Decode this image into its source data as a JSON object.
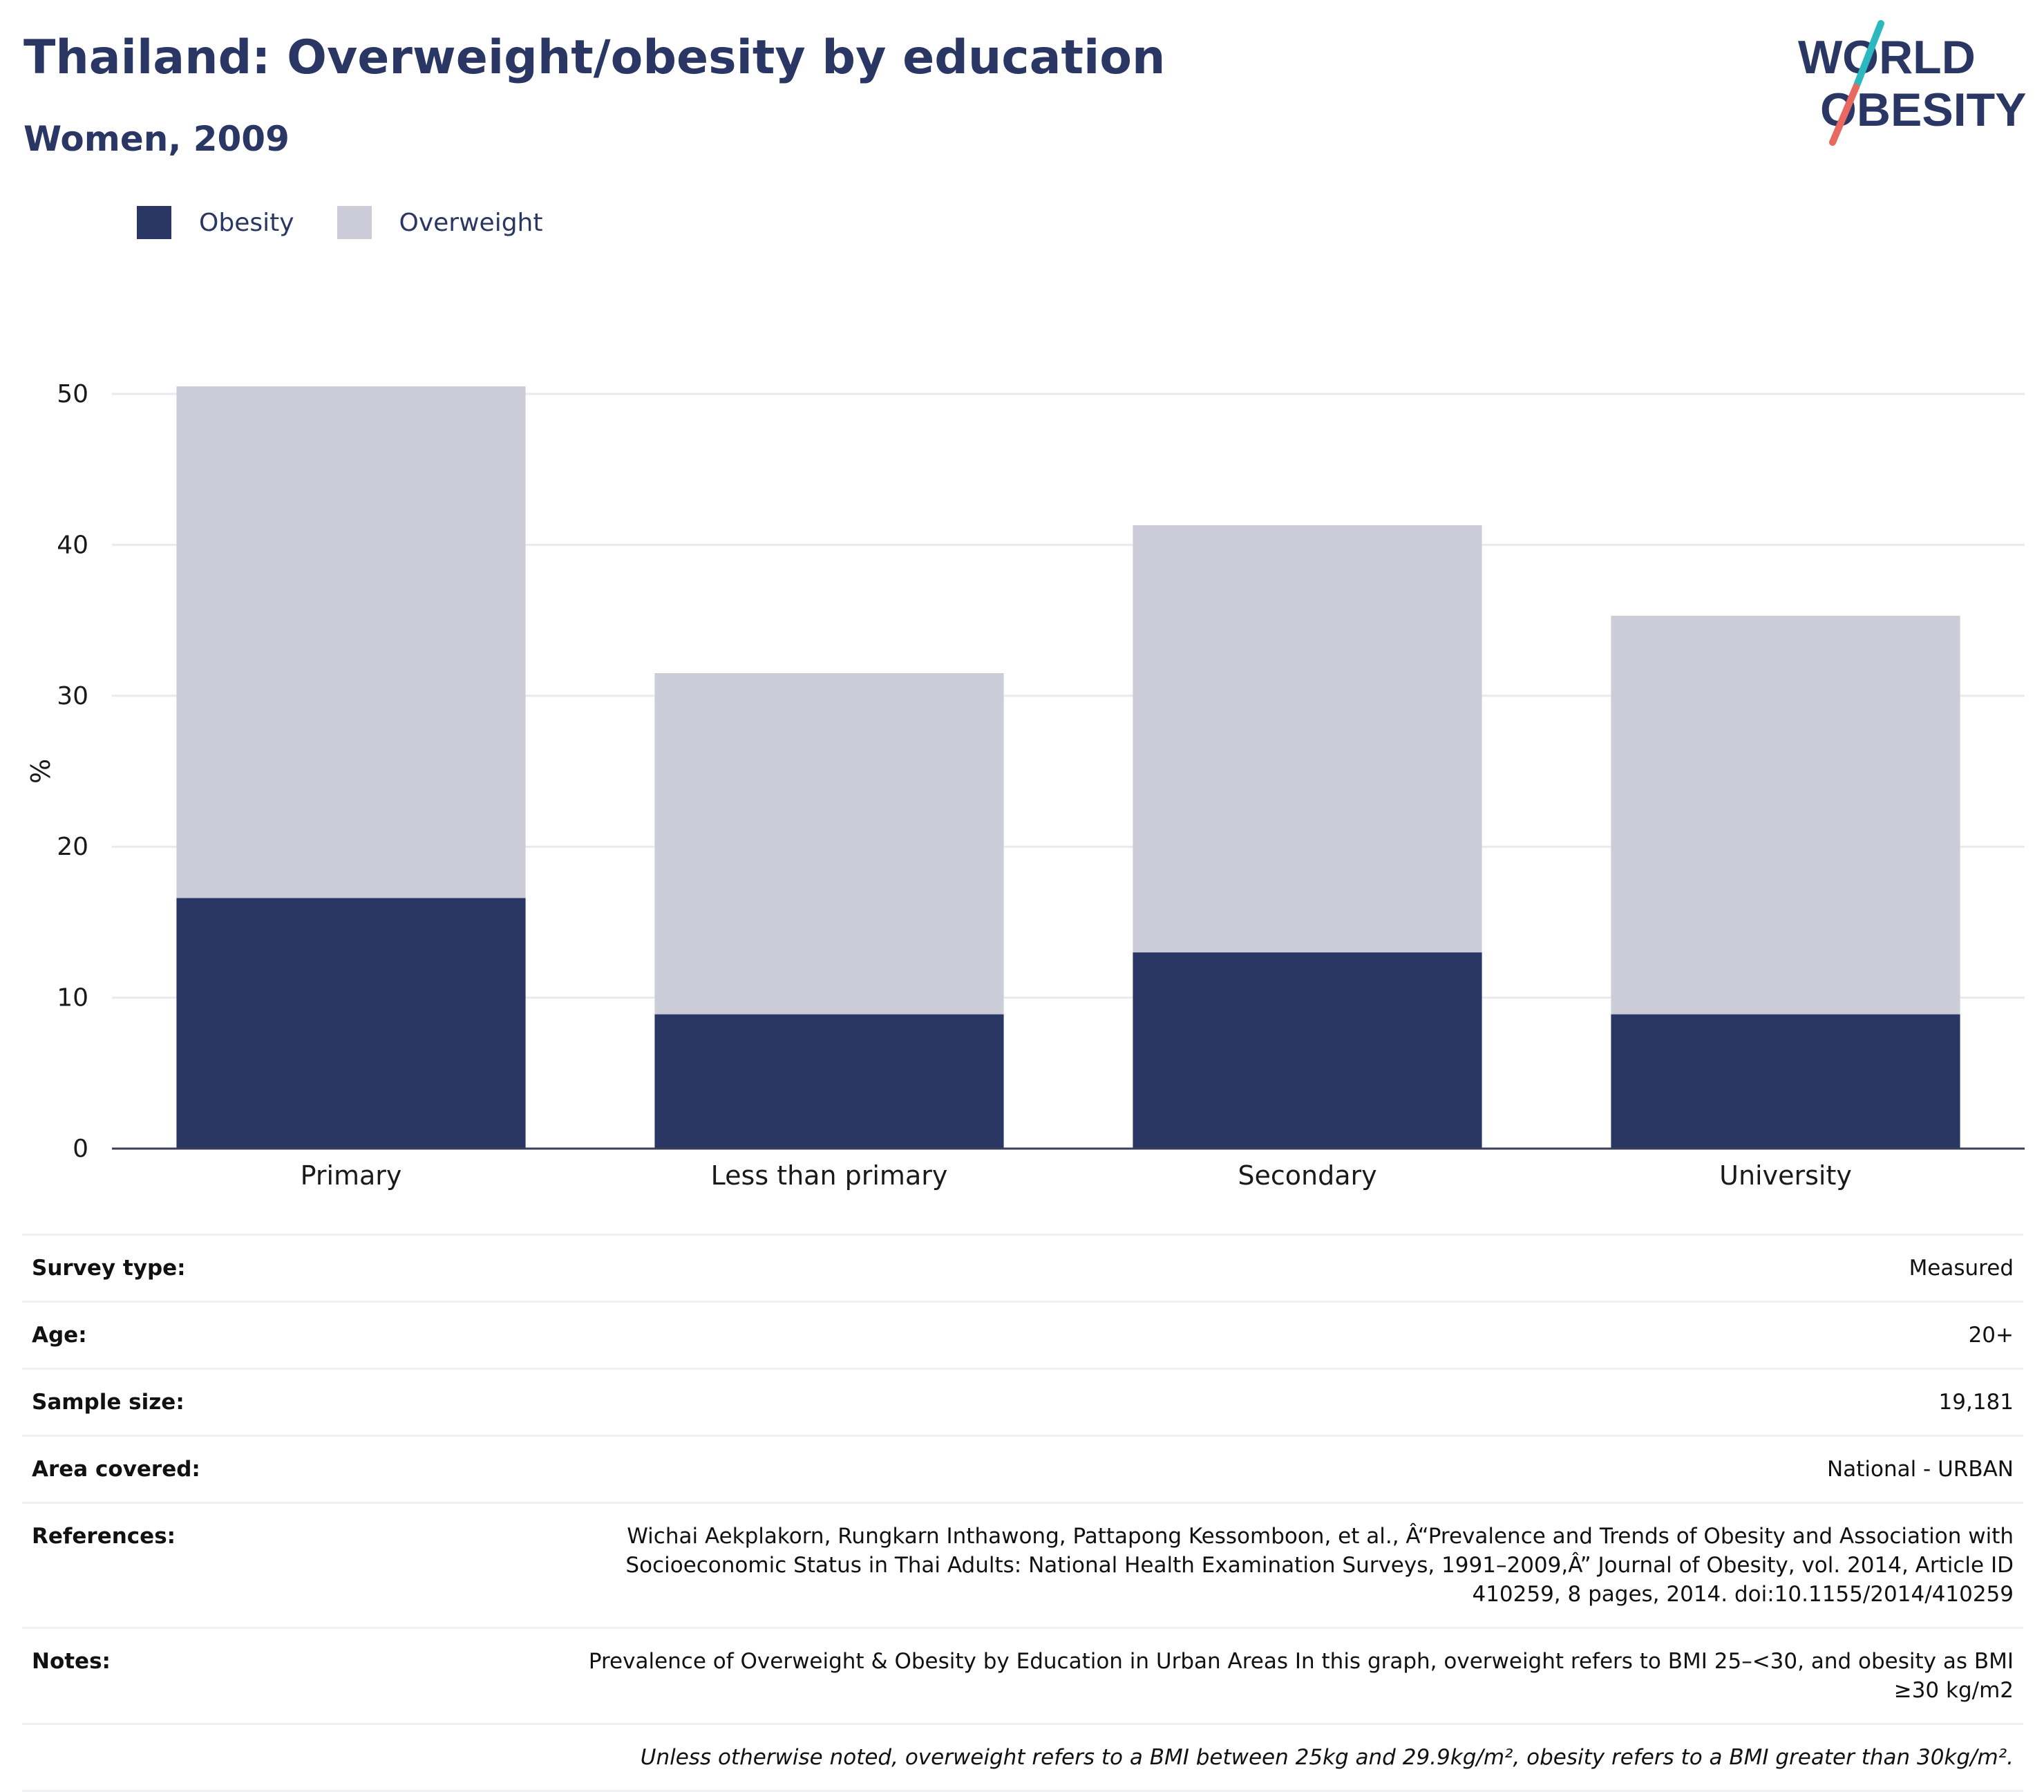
{
  "header": {
    "title": "Thailand: Overweight/obesity by education",
    "subtitle": "Women, 2009"
  },
  "logo": {
    "line1": "WORLD",
    "line2": "OBESITY",
    "colors": {
      "text": "#2a3663",
      "slash_top": "#2bb9bf",
      "slash_bottom": "#e8695f"
    }
  },
  "legend": [
    {
      "label": "Obesity",
      "color": "#2a3663"
    },
    {
      "label": "Overweight",
      "color": "#cbccd8"
    }
  ],
  "chart_data": {
    "type": "bar",
    "stacked": true,
    "categories": [
      "Primary",
      "Less than primary",
      "Secondary",
      "University"
    ],
    "series": [
      {
        "name": "Obesity",
        "color": "#2a3663",
        "values": [
          16.6,
          8.9,
          13.0,
          8.9
        ]
      },
      {
        "name": "Overweight",
        "color": "#cbccd8",
        "values": [
          33.9,
          22.6,
          28.3,
          26.4
        ]
      }
    ],
    "totals": [
      50.5,
      31.5,
      41.3,
      35.3
    ],
    "ylabel": "%",
    "ylim": [
      0,
      50
    ],
    "yticks": [
      "0",
      "10",
      "20",
      "30",
      "40",
      "50"
    ],
    "grid": true,
    "legend_position": "top-left"
  },
  "info": [
    {
      "label": "Survey type:",
      "value": "Measured"
    },
    {
      "label": "Age:",
      "value": "20+"
    },
    {
      "label": "Sample size:",
      "value": "19,181"
    },
    {
      "label": "Area covered:",
      "value": "National - URBAN"
    },
    {
      "label": "References:",
      "value": "Wichai Aekplakorn, Rungkarn Inthawong, Pattapong Kessomboon, et al., Â“Prevalence and Trends of Obesity and Association with Socioeconomic Status in Thai Adults: National Health Examination Surveys, 1991–2009,Â” Journal of Obesity, vol. 2014, Article ID 410259, 8 pages, 2014. doi:10.1155/2014/410259"
    },
    {
      "label": "Notes:",
      "value": "Prevalence of Overweight & Obesity by Education in Urban Areas In this graph, overweight refers to BMI 25–<30, and obesity as BMI ≥30 kg/m2"
    }
  ],
  "footnote": "Unless otherwise noted, overweight refers to a BMI between 25kg and 29.9kg/m², obesity refers to a BMI greater than 30kg/m²."
}
